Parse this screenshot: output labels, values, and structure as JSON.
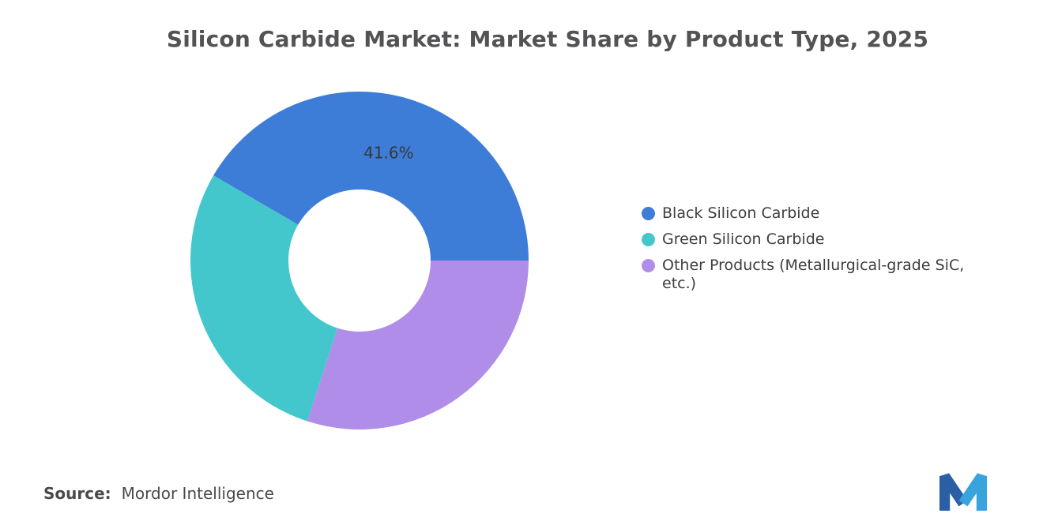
{
  "title": "Silicon Carbide Market: Market Share by Product Type, 2025",
  "source": {
    "label": "Source:",
    "value": "Mordor Intelligence"
  },
  "logo": {
    "name": "mordor-intelligence-logo",
    "colors": {
      "dark": "#2B5FA5",
      "light": "#38A3DC"
    }
  },
  "chart_data": {
    "type": "pie",
    "donut": true,
    "title": "Silicon Carbide Market: Market Share by Product Type, 2025",
    "units": "%",
    "start_angle_deg": 90,
    "direction": "counterclockwise",
    "legend_position": "right",
    "inner_radius_ratio": 0.42,
    "slices": [
      {
        "id": "black-silicon-carbide",
        "legend_label": "Black Silicon Carbide",
        "value": 41.6,
        "visible_label": "41.6%",
        "color": "#3E7DD7"
      },
      {
        "id": "green-silicon-carbide",
        "legend_label": "Green Silicon Carbide",
        "value": 28.4,
        "visible_label": "",
        "color": "#43C7CC"
      },
      {
        "id": "other-products",
        "legend_label": "Other Products (Metallurgical-grade SiC,\netc.)",
        "value": 30.0,
        "visible_label": "",
        "color": "#B08DE9"
      }
    ]
  }
}
